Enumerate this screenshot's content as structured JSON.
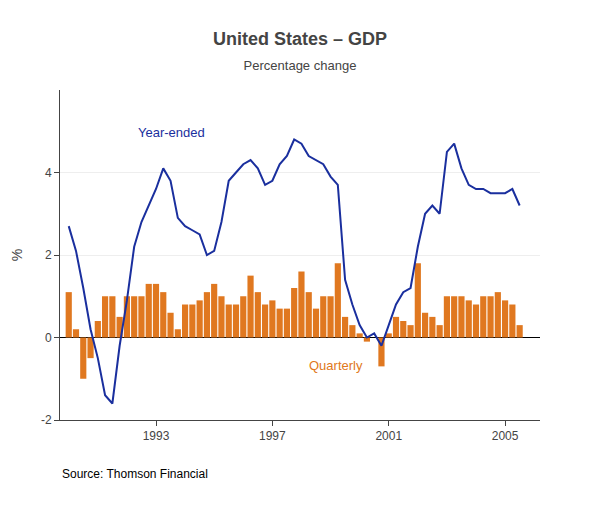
{
  "chart_data": {
    "type": "bar",
    "title": "United States – GDP",
    "subtitle": "Percentage change",
    "ylabel": "%",
    "y2label": "%",
    "source": "Source: Thomson Financial",
    "background_color": "#ffffff",
    "x": [
      1990,
      1990.25,
      1990.5,
      1990.75,
      1991,
      1991.25,
      1991.5,
      1991.75,
      1992,
      1992.25,
      1992.5,
      1992.75,
      1993,
      1993.25,
      1993.5,
      1993.75,
      1994,
      1994.25,
      1994.5,
      1994.75,
      1995,
      1995.25,
      1995.5,
      1995.75,
      1996,
      1996.25,
      1996.5,
      1996.75,
      1997,
      1997.25,
      1997.5,
      1997.75,
      1998,
      1998.25,
      1998.5,
      1998.75,
      1999,
      1999.25,
      1999.5,
      1999.75,
      2000,
      2000.25,
      2000.5,
      2000.75,
      2001,
      2001.25,
      2001.5,
      2001.75,
      2002,
      2002.25,
      2002.5,
      2002.75,
      2003,
      2003.25,
      2003.5,
      2003.75,
      2004,
      2004.25,
      2004.5,
      2004.75,
      2005,
      2005.25,
      2005.5
    ],
    "series": [
      {
        "type": "bar",
        "color": "#e07820",
        "values": [
          1.1,
          0.2,
          -1.0,
          -0.5,
          0.4,
          1.0,
          1.0,
          0.5,
          1.0,
          1.0,
          1.0,
          1.3,
          1.3,
          1.1,
          0.6,
          0.2,
          0.8,
          0.8,
          0.9,
          1.1,
          1.3,
          1.0,
          0.8,
          0.8,
          1.0,
          1.5,
          1.1,
          0.8,
          0.9,
          0.7,
          0.7,
          1.2,
          1.6,
          1.1,
          0.7,
          1.0,
          1.0,
          1.8,
          0.5,
          0.3,
          0.1,
          -0.1,
          0.0,
          -0.7,
          0.1,
          0.5,
          0.4,
          0.3,
          1.8,
          0.6,
          0.5,
          0.3,
          1.0,
          1.0,
          1.0,
          0.9,
          0.8,
          1.0,
          1.0,
          1.1,
          0.9,
          0.8,
          0.3
        ]
      },
      {
        "type": "line",
        "color": "#1a2f9e",
        "values": [
          2.7,
          2.1,
          1.2,
          0.2,
          -0.5,
          -1.4,
          -1.6,
          -0.2,
          0.9,
          2.2,
          2.8,
          3.2,
          3.6,
          4.1,
          3.8,
          2.9,
          2.7,
          2.6,
          2.5,
          2.0,
          2.1,
          2.8,
          3.8,
          4.0,
          4.2,
          4.3,
          4.1,
          3.7,
          3.8,
          4.2,
          4.4,
          4.8,
          4.7,
          4.4,
          4.3,
          4.2,
          3.9,
          3.7,
          1.4,
          0.8,
          0.3,
          0.0,
          0.1,
          -0.2,
          0.3,
          0.8,
          1.1,
          1.2,
          2.2,
          3.0,
          3.2,
          3.0,
          4.5,
          4.7,
          4.1,
          3.7,
          3.6,
          3.6,
          3.5,
          3.5,
          3.5,
          3.6,
          3.2
        ]
      }
    ],
    "annotations": [
      {
        "text": "Year-ended",
        "x": 1992.3,
        "y": 4.75,
        "color": "#1a2f9e"
      },
      {
        "text": "Quarterly",
        "x": 1998.2,
        "y": -0.45,
        "color": "#e07820"
      }
    ],
    "xlim": [
      1989.7,
      2006.2
    ],
    "xticks": [
      1993,
      1997,
      2001,
      2005
    ],
    "ylim": [
      -2,
      6
    ],
    "yticks": [
      -2,
      0,
      2,
      4
    ],
    "y2lim": [
      -2,
      6
    ],
    "y2ticks": [
      -2,
      0,
      2,
      4
    ],
    "grid": true
  }
}
